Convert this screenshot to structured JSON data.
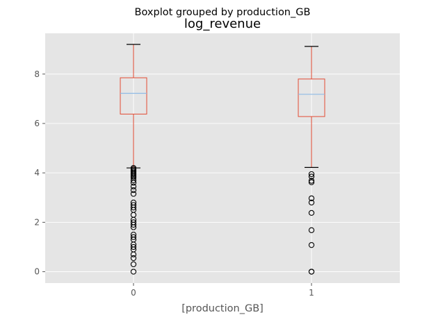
{
  "chart_data": {
    "type": "box",
    "suptitle": "Boxplot grouped by production_GB",
    "title": "log_revenue",
    "xlabel": "[production_GB]",
    "ylabel": "",
    "categories": [
      "0",
      "1"
    ],
    "ylim": [
      -0.46,
      9.65
    ],
    "yticks": [
      0,
      2,
      4,
      6,
      8
    ],
    "grid": true,
    "colors": {
      "plot_background": "#E5E5E5",
      "grid": "#FFFFFF",
      "box": "#E24A33",
      "median": "#8EBAE5",
      "caps": "#000000",
      "outlier": "#000000",
      "tick_label": "#555555"
    },
    "boxes": [
      {
        "category": "0",
        "whisker_low": 4.2,
        "q1": 6.38,
        "median": 7.22,
        "q3": 7.85,
        "whisker_high": 9.2,
        "outliers": [
          4.2,
          4.15,
          4.1,
          4.05,
          4.0,
          3.95,
          3.9,
          3.85,
          3.8,
          3.7,
          3.6,
          3.45,
          3.3,
          3.15,
          2.8,
          2.7,
          2.6,
          2.5,
          2.3,
          2.1,
          2.0,
          1.9,
          1.8,
          1.5,
          1.4,
          1.3,
          1.1,
          1.0,
          0.9,
          0.7,
          0.55,
          0.3,
          0.0
        ]
      },
      {
        "category": "1",
        "whisker_low": 4.22,
        "q1": 6.28,
        "median": 7.18,
        "q3": 7.8,
        "whisker_high": 9.12,
        "outliers": [
          3.95,
          3.85,
          3.68,
          3.62,
          2.97,
          2.8,
          2.38,
          1.68,
          1.08,
          0.0,
          0.0
        ]
      }
    ]
  }
}
